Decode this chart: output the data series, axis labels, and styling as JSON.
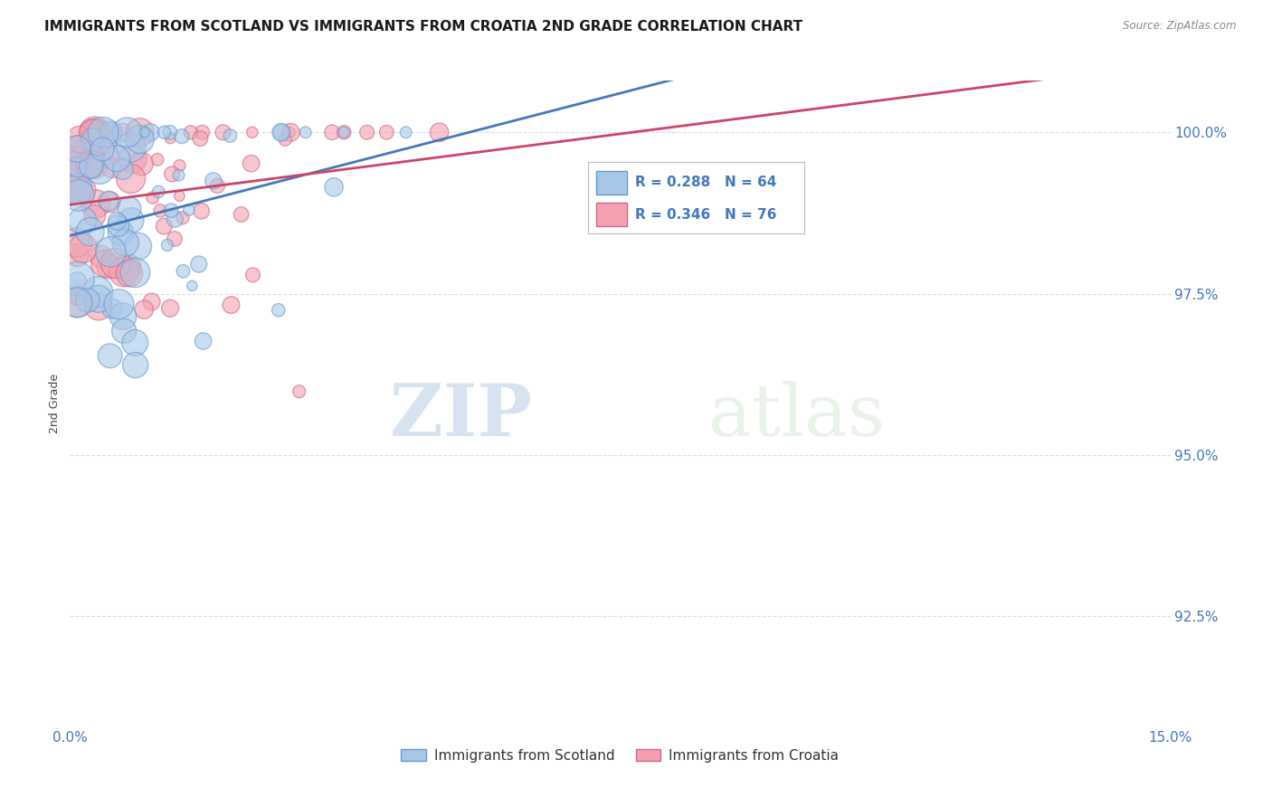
{
  "title": "IMMIGRANTS FROM SCOTLAND VS IMMIGRANTS FROM CROATIA 2ND GRADE CORRELATION CHART",
  "source": "Source: ZipAtlas.com",
  "ylabel": "2nd Grade",
  "yaxis_labels": [
    "100.0%",
    "97.5%",
    "95.0%",
    "92.5%"
  ],
  "yaxis_values": [
    1.0,
    0.975,
    0.95,
    0.925
  ],
  "xmin": 0.0,
  "xmax": 0.15,
  "ymin": 0.908,
  "ymax": 1.008,
  "scotland_R": 0.288,
  "scotland_N": 64,
  "croatia_R": 0.346,
  "croatia_N": 76,
  "scotland_color": "#a8c8e8",
  "croatia_color": "#f4a0b0",
  "scotland_edge_color": "#6699cc",
  "croatia_edge_color": "#cc6688",
  "scotland_line_color": "#4477bb",
  "croatia_line_color": "#cc4466",
  "legend_label_scotland": "Immigrants from Scotland",
  "legend_label_croatia": "Immigrants from Croatia",
  "watermark_zip": "ZIP",
  "watermark_atlas": "atlas",
  "grid_color": "#dddddd",
  "tick_color": "#4477bb"
}
